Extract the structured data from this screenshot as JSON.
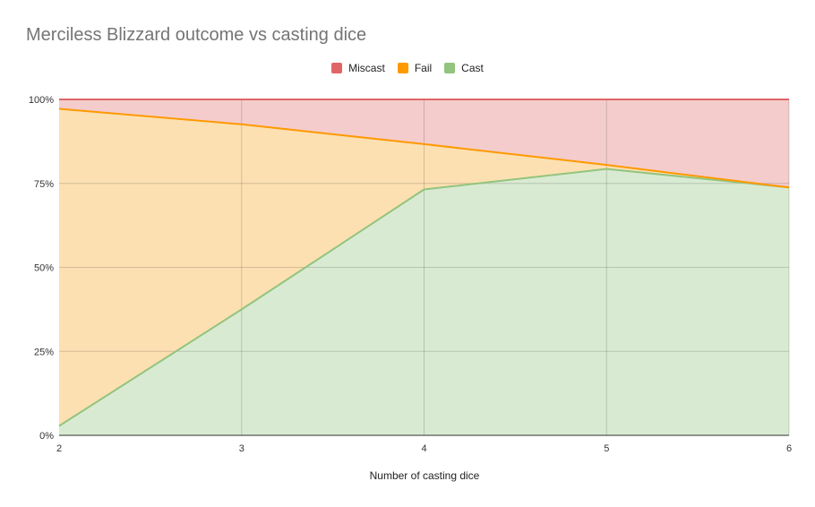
{
  "chart_data": {
    "type": "area",
    "stacked": true,
    "title": "Merciless Blizzard outcome vs casting dice",
    "xlabel": "Number of casting dice",
    "ylabel": "",
    "x": [
      2,
      3,
      4,
      5,
      6
    ],
    "x_tick_labels": [
      "2",
      "3",
      "4",
      "5",
      "6"
    ],
    "ylim": [
      0,
      1
    ],
    "y_ticks": [
      0,
      0.25,
      0.5,
      0.75,
      1
    ],
    "y_tick_labels": [
      "0%",
      "25%",
      "50%",
      "75%",
      "100%"
    ],
    "grid": true,
    "legend_position": "top",
    "series": [
      {
        "name": "Miscast",
        "color": "#e06666",
        "fill": "#f4cccc",
        "values": [
          0.028,
          0.074,
          0.133,
          0.195,
          0.262
        ]
      },
      {
        "name": "Fail",
        "color": "#ff9900",
        "fill": "#fce0b2",
        "values": [
          0.944,
          0.551,
          0.135,
          0.012,
          0.0
        ]
      },
      {
        "name": "Cast",
        "color": "#93c47d",
        "fill": "#d9ead3",
        "values": [
          0.028,
          0.375,
          0.732,
          0.793,
          0.738
        ]
      }
    ]
  }
}
